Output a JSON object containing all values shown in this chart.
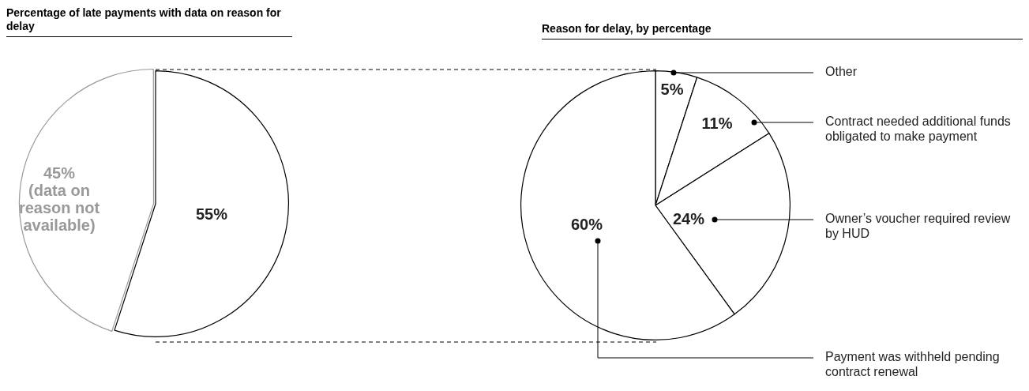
{
  "chart_data": [
    {
      "type": "pie",
      "title": "Percentage of late payments with data on reason for delay",
      "categories": [
        null,
        "(data on reason not available)"
      ],
      "values": [
        55,
        45
      ],
      "colors": [
        "#ffffff",
        "#ffffff"
      ],
      "value_labels": [
        "55%",
        "45%"
      ]
    },
    {
      "type": "pie",
      "title": "Reason for delay, by percentage",
      "categories": [
        "Other",
        "Contract needed additional funds obligated to make payment",
        "Owner’s voucher required review by HUD",
        "Payment was withheld pending contract renewal"
      ],
      "values": [
        5,
        11,
        24,
        60
      ],
      "colors": [
        "#ffffff",
        "#ffffff",
        "#ffffff",
        "#ffffff"
      ],
      "value_labels": [
        "5%",
        "11%",
        "24%",
        "60%"
      ]
    }
  ]
}
